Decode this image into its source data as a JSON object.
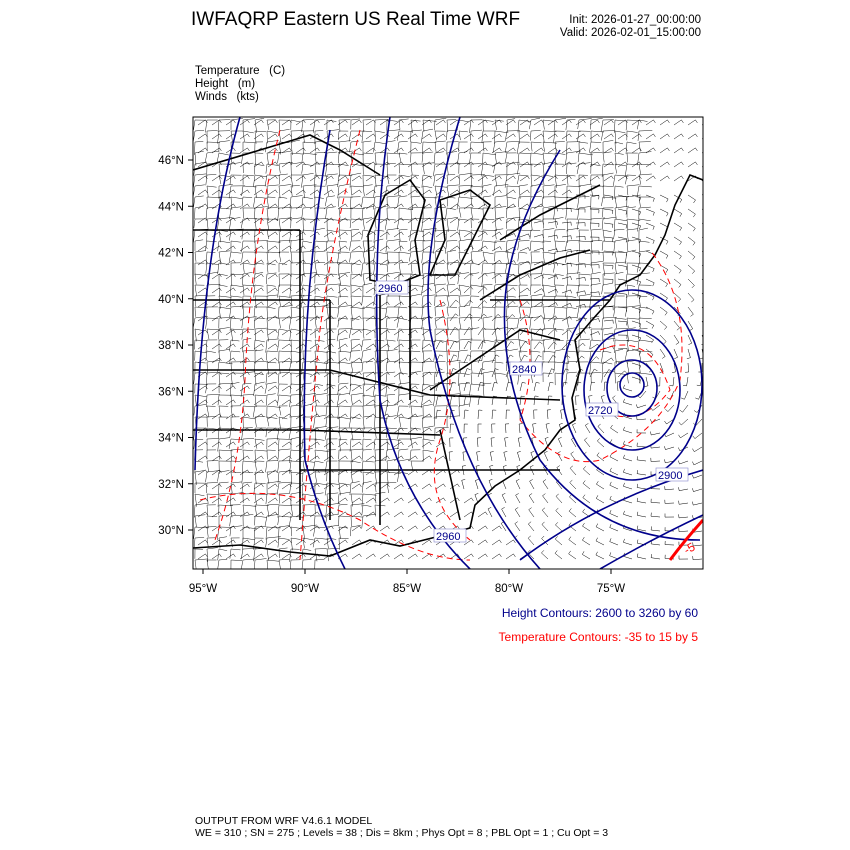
{
  "header": {
    "title": "IWFAQRP Eastern US Real Time WRF",
    "init": "Init: 2026-01-27_00:00:00",
    "valid": "Valid: 2026-02-01_15:00:00"
  },
  "fields": [
    "Temperature   (C)",
    "Height   (m)",
    "Winds   (kts)"
  ],
  "map": {
    "lat_ticks": [
      "46°N",
      "44°N",
      "42°N",
      "40°N",
      "38°N",
      "36°N",
      "34°N",
      "32°N",
      "30°N"
    ],
    "lon_ticks": [
      "95°W",
      "90°W",
      "85°W",
      "80°W",
      "75°W"
    ],
    "height_contour_labels": [
      "2960",
      "2840",
      "2720",
      "2900",
      "2960"
    ],
    "temperature_label": "-5",
    "colors": {
      "height": "#00008b",
      "temperature": "#ff0000",
      "borders": "#000000"
    }
  },
  "legend": {
    "height": "Height Contours: 2600 to 3260 by 60",
    "temperature": "Temperature Contours: -35 to 15 by 5"
  },
  "footer": {
    "line1": "OUTPUT FROM WRF V4.6.1 MODEL",
    "line2": "WE = 310 ; SN = 275 ; Levels = 38 ; Dis = 8km ; Phys Opt = 8 ; PBL Opt = 1 ; Cu Opt = 3"
  }
}
